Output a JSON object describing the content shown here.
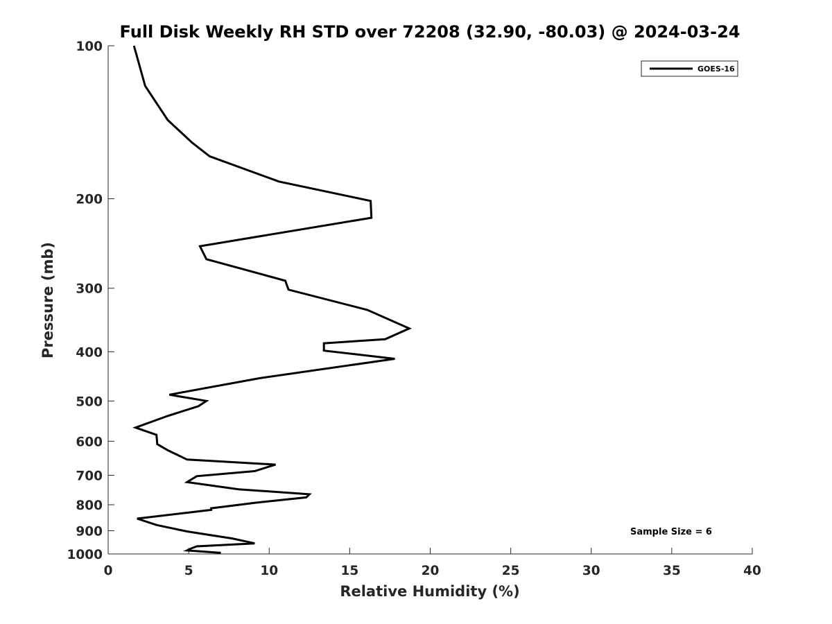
{
  "chart_data": {
    "type": "line",
    "title": "Full Disk Weekly RH STD over 72208 (32.90, -80.03) @ 2024-03-24",
    "xlabel": "Relative Humidity (%)",
    "ylabel": "Pressure (mb)",
    "xlim": [
      0,
      40
    ],
    "ylim": [
      1000,
      100
    ],
    "yscale": "log",
    "xticks": [
      0,
      5,
      10,
      15,
      20,
      25,
      30,
      35,
      40
    ],
    "yticks": [
      100,
      200,
      300,
      400,
      500,
      600,
      700,
      800,
      900,
      1000
    ],
    "grid": false,
    "legend_position": "top-right",
    "series": [
      {
        "name": "GOES-16",
        "color": "#000000",
        "x": [
          1.6,
          2.3,
          3.7,
          5.2,
          6.3,
          10.6,
          16.3,
          16.35,
          5.7,
          6.1,
          11.0,
          11.2,
          16.1,
          18.7,
          17.2,
          13.4,
          13.4,
          17.8,
          9.4,
          3.8,
          6.1,
          5.6,
          3.7,
          1.7,
          3.0,
          3.05,
          3.7,
          4.9,
          10.4,
          9.1,
          5.5,
          4.9,
          8.1,
          12.5,
          12.3,
          9.1,
          6.4,
          6.4,
          1.8,
          3.0,
          4.9,
          7.7,
          9.1,
          5.5,
          5.2,
          4.9,
          7.0
        ],
        "y": [
          100,
          120,
          140,
          155,
          165,
          185,
          202,
          218,
          248,
          263,
          290,
          302,
          331,
          360,
          378,
          385,
          398,
          413,
          451,
          486,
          500,
          512,
          535,
          564,
          583,
          608,
          625,
          652,
          667,
          687,
          703,
          722,
          746,
          763,
          774,
          793,
          813,
          819,
          852,
          877,
          903,
          932,
          953,
          966,
          974,
          984,
          995
        ]
      }
    ],
    "annotations": [
      {
        "text": "Sample Size = 6"
      }
    ]
  }
}
